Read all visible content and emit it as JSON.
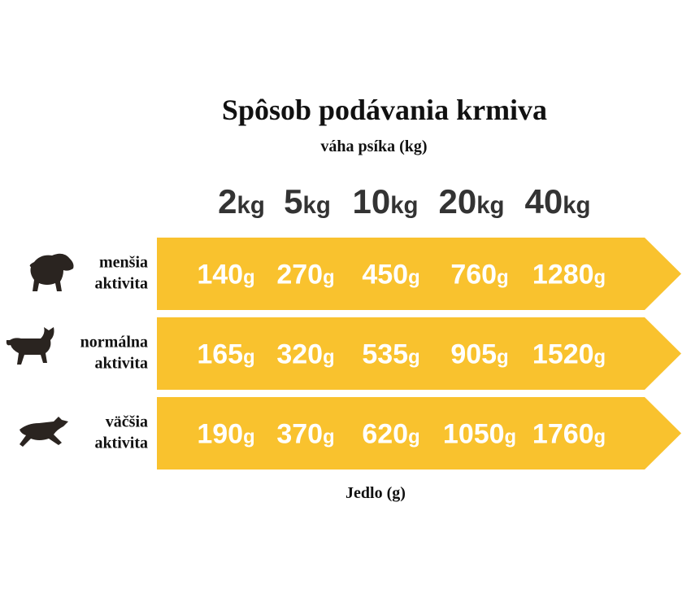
{
  "title": "Spôsob podávania krmiva",
  "subtitle": "váha psíka (kg)",
  "columns": [
    "2kg",
    "5kg",
    "10kg",
    "20kg",
    "40kg"
  ],
  "rows": [
    {
      "label": [
        "menšia",
        "aktivita"
      ],
      "values": [
        "140g",
        "270g",
        "450g",
        "760g",
        "1280g"
      ]
    },
    {
      "label": [
        "normálna",
        "aktivita"
      ],
      "values": [
        "165g",
        "320g",
        "535g",
        "905g",
        "1520g"
      ]
    },
    {
      "label": [
        "väčšia",
        "aktivita"
      ],
      "values": [
        "190g",
        "370g",
        "620g",
        "1050g",
        "1760g"
      ]
    }
  ],
  "footer": "Jedlo (g)"
}
